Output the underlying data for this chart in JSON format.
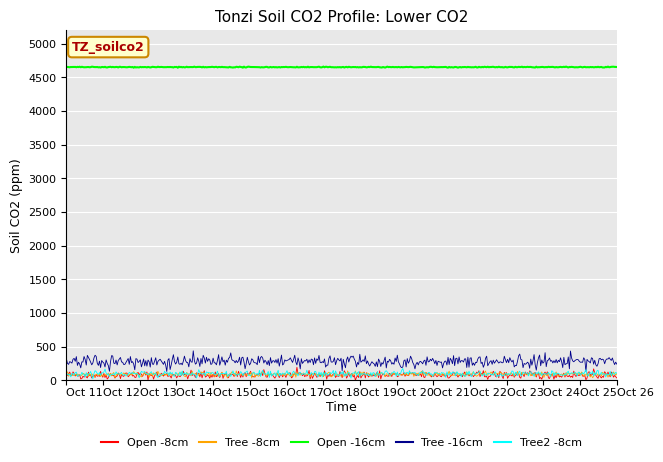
{
  "title": "Tonzi Soil CO2 Profile: Lower CO2",
  "xlabel": "Time",
  "ylabel": "Soil CO2 (ppm)",
  "ylim": [
    0,
    5200
  ],
  "yticks": [
    0,
    500,
    1000,
    1500,
    2000,
    2500,
    3000,
    3500,
    4000,
    4500,
    5000
  ],
  "n_points": 500,
  "series": {
    "Open -8cm": {
      "color": "#ff0000",
      "mean": 80,
      "noise": 30,
      "label": "Open -8cm"
    },
    "Tree -8cm": {
      "color": "#ffa500",
      "mean": 90,
      "noise": 20,
      "label": "Tree -8cm"
    },
    "Open -16cm": {
      "color": "#00ff00",
      "mean": 4650,
      "noise": 3,
      "label": "Open -16cm"
    },
    "Tree -16cm": {
      "color": "#00008b",
      "mean": 280,
      "noise": 50,
      "label": "Tree -16cm"
    },
    "Tree2 -8cm": {
      "color": "#00ffff",
      "mean": 100,
      "noise": 25,
      "label": "Tree2 -8cm"
    }
  },
  "annotation_text": "TZ_soilco2",
  "annotation_bg": "#ffffcc",
  "annotation_text_color": "#aa0000",
  "annotation_border_color": "#cc8800",
  "bg_color": "#e8e8e8",
  "title_fontsize": 11,
  "axis_fontsize": 9,
  "tick_fontsize": 8,
  "legend_fontsize": 8,
  "x_tick_labels": [
    "Oct 11",
    "Oct 12",
    "Oct 13",
    "Oct 14",
    "Oct 15",
    "Oct 16",
    "Oct 17",
    "Oct 18",
    "Oct 19",
    "Oct 20",
    "Oct 21",
    "Oct 22",
    "Oct 23",
    "Oct 24",
    "Oct 25",
    "Oct 26"
  ]
}
